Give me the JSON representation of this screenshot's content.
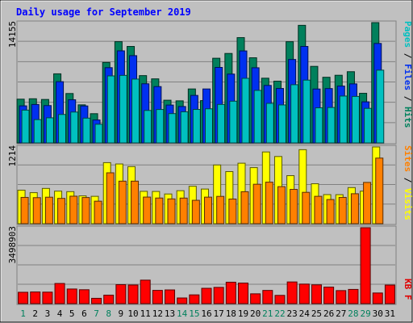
{
  "chart_data": {
    "title": "Daily usage for September 2019",
    "type": "bar",
    "days": [
      "1",
      "2",
      "3",
      "4",
      "5",
      "6",
      "7",
      "8",
      "9",
      "10",
      "11",
      "12",
      "13",
      "14",
      "15",
      "16",
      "17",
      "18",
      "19",
      "20",
      "21",
      "22",
      "23",
      "24",
      "25",
      "26",
      "27",
      "28",
      "29",
      "30",
      "31"
    ],
    "weekend_days": [
      "1",
      "7",
      "8",
      "14",
      "15",
      "21",
      "22",
      "28",
      "29"
    ],
    "panels": [
      {
        "name": "top",
        "max_label": "14155",
        "ylim": [
          0,
          14155
        ],
        "legend": [
          {
            "text": "Pages",
            "color": "#00c0c0"
          },
          {
            "text": " / ",
            "color": "#000000"
          },
          {
            "text": "Files",
            "color": "#0030f0"
          },
          {
            "text": " / ",
            "color": "#000000"
          },
          {
            "text": "Hits",
            "color": "#00805c"
          }
        ],
        "series": [
          {
            "name": "Hits",
            "color": "#00805c",
            "values": [
              5148,
              5196,
              5114,
              8130,
              5813,
              4480,
              3440,
              9467,
              11914,
              11350,
              7919,
              7537,
              5025,
              4952,
              6350,
              4980,
              9963,
              10525,
              12390,
              10018,
              7615,
              7265,
              11910,
              13835,
              9007,
              7725,
              7961,
              8381,
              5838,
              14155,
              0
            ]
          },
          {
            "name": "Files",
            "color": "#0030f0",
            "values": [
              4362,
              4521,
              4393,
              7207,
              5077,
              4351,
              2700,
              8855,
              10832,
              10268,
              6959,
              6628,
              4454,
              4285,
              5590,
              6349,
              8883,
              8100,
              10823,
              8843,
              6765,
              6408,
              9818,
              11353,
              6343,
              6394,
              6690,
              6947,
              4834,
              11703,
              0
            ]
          },
          {
            "name": "Pages",
            "color": "#00c0c0",
            "values": [
              3859,
              2743,
              2953,
              3348,
              3632,
              2917,
              2198,
              7886,
              7946,
              7510,
              3820,
              3935,
              3450,
              3660,
              3940,
              4015,
              4530,
              4910,
              7600,
              6180,
              4655,
              4470,
              6850,
              7390,
              4131,
              4170,
              5515,
              5470,
              4066,
              8561,
              0
            ]
          }
        ]
      },
      {
        "name": "middle",
        "max_label": "1214",
        "ylim": [
          0,
          1214
        ],
        "legend": [
          {
            "text": "Sites",
            "color": "#ff8000"
          },
          {
            "text": " / ",
            "color": "#000000"
          },
          {
            "text": "Visits",
            "color": "#ffff00"
          }
        ],
        "series": [
          {
            "name": "Visits",
            "color": "#ffff00",
            "values": [
              530,
              491,
              558,
              515,
              507,
              440,
              433,
              966,
              945,
              903,
              512,
              510,
              470,
              522,
              592,
              548,
              929,
              824,
              957,
              887,
              1135,
              1063,
              760,
              1171,
              632,
              460,
              459,
              571,
              515,
              1214,
              0
            ]
          },
          {
            "name": "Sites",
            "color": "#ff8000",
            "values": [
              416,
              412,
              419,
              400,
              435,
              414,
              356,
              805,
              673,
              673,
              421,
              406,
              392,
              405,
              370,
              420,
              432,
              390,
              506,
              624,
              657,
              586,
              543,
              496,
              433,
              382,
              416,
              474,
              653,
              1038,
              0
            ]
          }
        ]
      },
      {
        "name": "bottom",
        "max_label": "3498903",
        "ylim": [
          0,
          3498903
        ],
        "legend": [
          {
            "text": "KB F",
            "color": "#e00000"
          }
        ],
        "series": [
          {
            "name": "KB F",
            "color": "#ff0000",
            "values": [
              523570,
              537305,
              529813,
              928725,
              673549,
              640086,
              244672,
              390738,
              874130,
              858025,
              1082625,
              610612,
              632006,
              260305,
              403432,
              706612,
              749077,
              987350,
              947320,
              452125,
              608488,
              380412,
              999425,
              900412,
              865962,
              762988,
              600612,
              654600,
              3498903,
              490287,
              854262
            ]
          }
        ]
      }
    ]
  }
}
